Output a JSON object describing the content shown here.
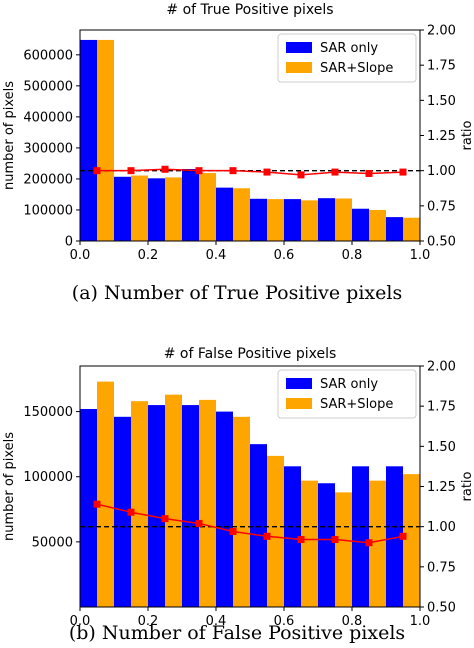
{
  "chart_data": [
    {
      "type": "bar",
      "title": "# of True Positive pixels",
      "caption": "(a) Number of True Positive pixels",
      "xlabel": "",
      "ylabel": "number of pixels",
      "y2label": "ratio",
      "xlim": [
        0.0,
        1.0
      ],
      "ylim": [
        0,
        680000
      ],
      "y2lim": [
        0.5,
        2.0
      ],
      "xticks": [
        "0.0",
        "0.2",
        "0.4",
        "0.6",
        "0.8",
        "1.0"
      ],
      "yticks": [
        "0",
        "100000",
        "200000",
        "300000",
        "400000",
        "500000",
        "600000"
      ],
      "y2ticks": [
        "0.50",
        "0.75",
        "1.00",
        "1.25",
        "1.50",
        "1.75",
        "2.00"
      ],
      "x": [
        0.05,
        0.15,
        0.25,
        0.35,
        0.45,
        0.55,
        0.65,
        0.75,
        0.85,
        0.95
      ],
      "series": [
        {
          "name": "SAR only",
          "color": "#0000ff",
          "values": [
            648000,
            207000,
            202000,
            232000,
            172000,
            136000,
            135000,
            138000,
            104000,
            77000
          ]
        },
        {
          "name": "SAR+Slope",
          "color": "#ffa500",
          "values": [
            648000,
            211000,
            205000,
            219000,
            170000,
            135000,
            131000,
            137000,
            100000,
            75000
          ]
        }
      ],
      "ratio": {
        "color": "#ff0000",
        "axis": "right",
        "values": [
          1.0,
          1.0,
          1.01,
          1.0,
          1.0,
          0.99,
          0.97,
          0.99,
          0.98,
          0.99
        ]
      },
      "reference_line": {
        "value": 1.0,
        "axis": "right",
        "style": "dashed"
      },
      "legend": "top-right"
    },
    {
      "type": "bar",
      "title": "# of False Positive pixels",
      "caption": "(b) Number of False Positive pixels",
      "xlabel": "",
      "ylabel": "number of pixels",
      "y2label": "ratio",
      "xlim": [
        0.0,
        1.0
      ],
      "ylim": [
        0,
        185000
      ],
      "y2lim": [
        0.5,
        2.0
      ],
      "xticks": [
        "0.0",
        "0.2",
        "0.4",
        "0.6",
        "0.8",
        "1.0"
      ],
      "yticks": [
        "50000",
        "100000",
        "150000"
      ],
      "y2ticks": [
        "0.50",
        "0.75",
        "1.00",
        "1.25",
        "1.50",
        "1.75",
        "2.00"
      ],
      "x": [
        0.05,
        0.15,
        0.25,
        0.35,
        0.45,
        0.55,
        0.65,
        0.75,
        0.85,
        0.95
      ],
      "series": [
        {
          "name": "SAR only",
          "color": "#0000ff",
          "values": [
            152000,
            146000,
            155000,
            155000,
            150000,
            125000,
            108000,
            95000,
            108000,
            108000
          ]
        },
        {
          "name": "SAR+Slope",
          "color": "#ffa500",
          "values": [
            173000,
            158000,
            163000,
            159000,
            146000,
            116000,
            97000,
            88000,
            97000,
            102000
          ]
        }
      ],
      "ratio": {
        "color": "#ff0000",
        "axis": "right",
        "values": [
          1.14,
          1.09,
          1.05,
          1.02,
          0.97,
          0.94,
          0.92,
          0.92,
          0.9,
          0.94
        ]
      },
      "reference_line": {
        "value": 1.0,
        "axis": "right",
        "style": "dashed"
      },
      "legend": "top-right"
    }
  ]
}
